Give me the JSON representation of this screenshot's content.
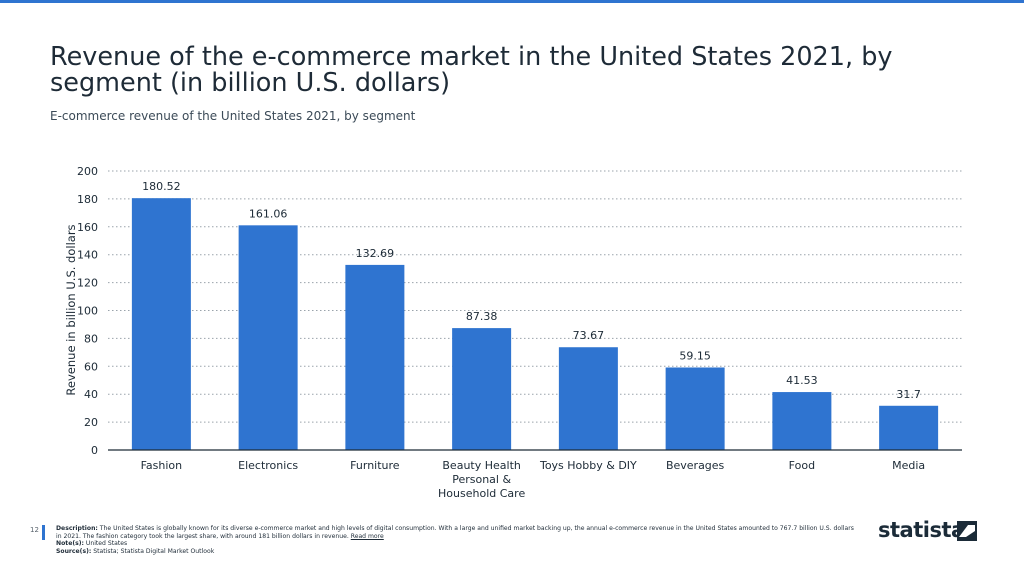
{
  "header": {
    "title": "Revenue of the e-commerce market in the United States 2021, by segment (in billion U.S. dollars)",
    "subtitle": "E-commerce revenue of the United States 2021, by segment"
  },
  "chart_data": {
    "type": "bar",
    "categories": [
      [
        "Fashion"
      ],
      [
        "Electronics"
      ],
      [
        "Furniture"
      ],
      [
        "Beauty Health",
        "Personal &",
        "Household Care"
      ],
      [
        "Toys Hobby & DIY"
      ],
      [
        "Beverages"
      ],
      [
        "Food"
      ],
      [
        "Media"
      ]
    ],
    "values": [
      180.52,
      161.06,
      132.69,
      87.38,
      73.67,
      59.15,
      41.53,
      31.7
    ],
    "value_labels": [
      "180.52",
      "161.06",
      "132.69",
      "87.38",
      "73.67",
      "59.15",
      "41.53",
      "31.7"
    ],
    "ylabel": "Revenue in billion U.S. dollars",
    "xlabel": "",
    "ylim": [
      0,
      200
    ],
    "yticks": [
      0,
      20,
      40,
      60,
      80,
      100,
      120,
      140,
      160,
      180,
      200
    ],
    "grid": true,
    "bar_color": "#2f74d0"
  },
  "footer": {
    "page_number": "12",
    "description_label": "Description:",
    "description": "The United States is globally known for its diverse e-commerce market and high levels of digital consumption. With a large and unified market backing up, the annual e-commerce revenue in the United States amounted to 767.7 billion U.S. dollars in 2021. The fashion category took the largest share, with around 181 billion dollars in revenue.",
    "read_more": "Read more",
    "notes_label": "Note(s):",
    "notes": "United States",
    "sources_label": "Source(s):",
    "sources": "Statista; Statista Digital Market Outlook"
  },
  "brand": {
    "logo_text": "statista",
    "accent": "#2f74d0"
  }
}
